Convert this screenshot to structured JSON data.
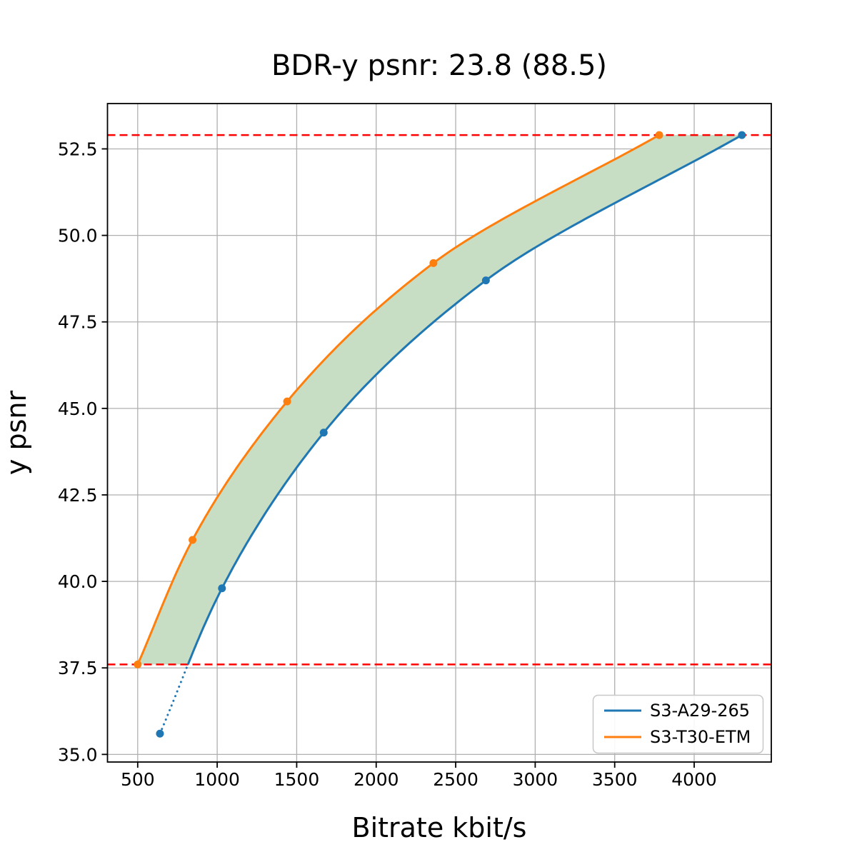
{
  "figure": {
    "background": "#ffffff"
  },
  "chart_data": {
    "type": "line",
    "title": "BDR-y psnr: 23.8 (88.5)",
    "xlabel": "Bitrate kbit/s",
    "ylabel": "y psnr",
    "xlim": [
      310,
      4485
    ],
    "ylim": [
      34.78,
      53.81
    ],
    "xticks": [
      500,
      1000,
      1500,
      2000,
      2500,
      3000,
      3500,
      4000
    ],
    "xtick_labels": [
      "500",
      "1000",
      "1500",
      "2000",
      "2500",
      "3000",
      "3500",
      "4000"
    ],
    "yticks": [
      35.0,
      37.5,
      40.0,
      42.5,
      45.0,
      47.5,
      50.0,
      52.5
    ],
    "ytick_labels": [
      "35.0",
      "37.5",
      "40.0",
      "42.5",
      "45.0",
      "47.5",
      "50.0",
      "52.5"
    ],
    "grid": true,
    "grid_color": "#b0b0b0",
    "series": [
      {
        "name": "S3-A29-265",
        "color": "#1f77b4",
        "x": [
          640,
          1030,
          1670,
          2690,
          4300
        ],
        "y": [
          35.6,
          39.8,
          44.3,
          48.7,
          52.9
        ],
        "style_outside_overlap": "dotted"
      },
      {
        "name": "S3-T30-ETM",
        "color": "#ff7f0e",
        "x": [
          500,
          845,
          1440,
          2360,
          3780
        ],
        "y": [
          37.6,
          41.2,
          45.2,
          49.2,
          52.9
        ],
        "style_outside_overlap": "none"
      }
    ],
    "overlap_hlines": {
      "values": [
        37.6,
        52.9
      ],
      "color": "#ff0000",
      "style": "dashed"
    },
    "fill_between": {
      "between": [
        "S3-T30-ETM",
        "S3-A29-265"
      ],
      "y_range": [
        37.6,
        52.9
      ],
      "color": "#c7dec4"
    },
    "legend": {
      "position": "lower right",
      "entries": [
        "S3-A29-265",
        "S3-T30-ETM"
      ]
    }
  }
}
